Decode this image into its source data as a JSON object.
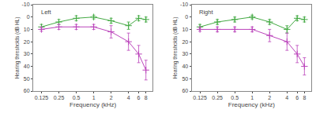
{
  "chart_data": [
    {
      "type": "line",
      "log": "x",
      "grid": false,
      "xlabel": "Frequency (kHz)",
      "ylabel": "Hearing thresholds (dB HL)",
      "annotations": [
        "Left"
      ],
      "x": [
        0.125,
        0.25,
        0.5,
        1,
        2,
        4,
        6,
        8
      ],
      "series": [
        {
          "color": "#44aa44",
          "marker": "plus",
          "line_style": "solid",
          "values": [
            8,
            4,
            1,
            0,
            3,
            7,
            1,
            2
          ],
          "errors": [
            2,
            2,
            2,
            1.5,
            2,
            3,
            2,
            2
          ]
        },
        {
          "color": "#bb44bb",
          "marker": "plus",
          "line_style": "solid",
          "values": [
            10,
            8,
            8,
            8,
            12,
            20,
            30,
            43
          ],
          "errors": [
            1.5,
            2,
            2,
            2,
            5,
            7,
            7,
            8
          ]
        }
      ],
      "xlim": [
        0.09,
        10.5
      ],
      "xticks": [
        0.125,
        0.25,
        0.5,
        1,
        2,
        4,
        6,
        8
      ],
      "ylim": [
        60,
        -10
      ],
      "yticks": [
        -10,
        0,
        10,
        20,
        30,
        40,
        50,
        60
      ]
    },
    {
      "type": "line",
      "log": "x",
      "grid": false,
      "xlabel": "Frequency (kHz)",
      "ylabel": "Hearing thresholds (dB HL)",
      "annotations": [
        "Right"
      ],
      "x": [
        0.125,
        0.25,
        0.5,
        1,
        2,
        4,
        6,
        8
      ],
      "series": [
        {
          "color": "#44aa44",
          "marker": "plus",
          "line_style": "solid",
          "values": [
            8,
            4,
            2,
            0,
            4,
            10,
            1,
            2
          ],
          "errors": [
            2,
            2,
            2,
            1.5,
            2,
            3,
            2,
            2
          ]
        },
        {
          "color": "#bb44bb",
          "marker": "plus",
          "line_style": "solid",
          "values": [
            10,
            10,
            10,
            10,
            15,
            20,
            30,
            40
          ],
          "errors": [
            1.5,
            2,
            2,
            2,
            5,
            7,
            7,
            7
          ]
        }
      ],
      "xlim": [
        0.09,
        10.5
      ],
      "xticks": [
        0.125,
        0.25,
        0.5,
        1,
        2,
        4,
        6,
        8
      ],
      "ylim": [
        60,
        -10
      ],
      "yticks": [
        -10,
        0,
        10,
        20,
        30,
        40,
        50,
        60
      ]
    }
  ]
}
